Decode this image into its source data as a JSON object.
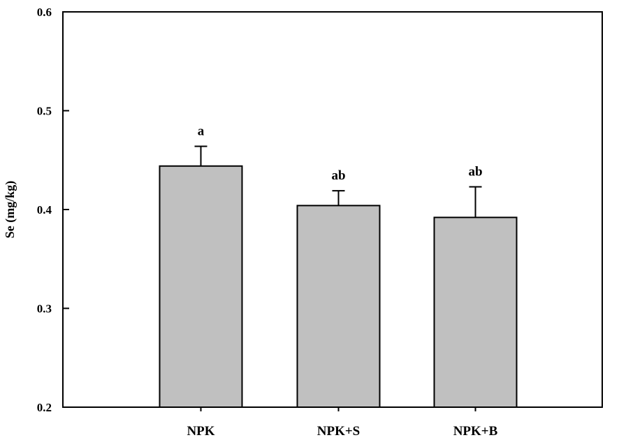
{
  "chart_data": {
    "type": "bar",
    "title": "",
    "xlabel": "",
    "ylabel": "Se (mg/kg)",
    "ylim": [
      0.2,
      0.6
    ],
    "yticks": [
      "0.2",
      "0.3",
      "0.4",
      "0.5",
      "0.6"
    ],
    "grid": false,
    "categories": [
      "NPK",
      "NPK+S",
      "NPK+B"
    ],
    "values": [
      0.444,
      0.404,
      0.392
    ],
    "error_upper": [
      0.02,
      0.015,
      0.031
    ],
    "significance_labels": [
      "a",
      "ab",
      "ab"
    ],
    "colors": {
      "bar_fill": "#c0c0c0",
      "bar_stroke": "#000000",
      "axis": "#000000"
    }
  }
}
